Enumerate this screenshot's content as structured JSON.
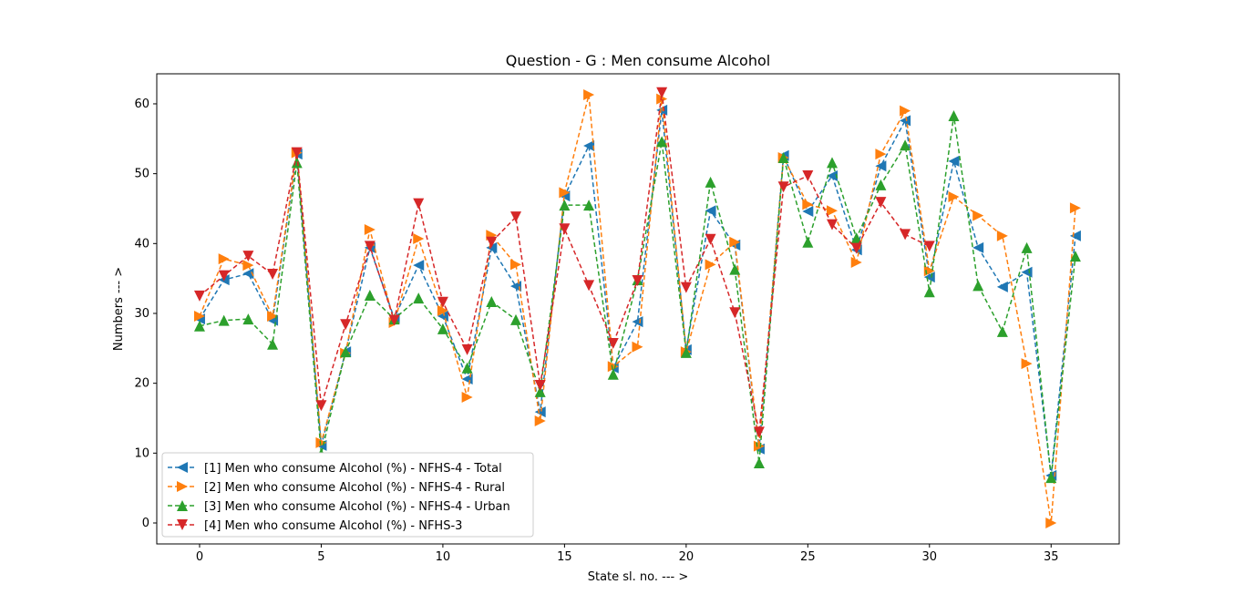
{
  "chart_data": {
    "type": "line",
    "title": "Question - G : Men consume Alcohol",
    "x_label": "State sl. no. --- >",
    "y_label": "Numbers --- >",
    "x": [
      0,
      1,
      2,
      3,
      4,
      5,
      6,
      7,
      8,
      9,
      10,
      11,
      12,
      13,
      14,
      15,
      16,
      17,
      18,
      19,
      20,
      21,
      22,
      23,
      24,
      25,
      26,
      27,
      28,
      29,
      30,
      31,
      32,
      33,
      34,
      35,
      36
    ],
    "xlim": [
      -1.76,
      37.8
    ],
    "xticks": [
      0,
      5,
      10,
      15,
      20,
      25,
      30,
      35
    ],
    "ylim": [
      -3.0,
      64.3
    ],
    "yticks": [
      0,
      10,
      20,
      30,
      40,
      50,
      60
    ],
    "legend": "lower left",
    "series": [
      {
        "name": "[1] Men who consume Alcohol (%) - NFHS-4 - Total",
        "color": "#1f77b4",
        "marker": "<",
        "values": [
          29.2,
          34.8,
          35.7,
          29.0,
          52.8,
          11.1,
          24.5,
          39.4,
          29.3,
          36.9,
          29.6,
          20.6,
          39.4,
          33.9,
          15.9,
          46.8,
          54.0,
          22.2,
          28.8,
          59.1,
          24.8,
          44.7,
          39.8,
          10.6,
          52.6,
          44.6,
          49.7,
          39.1,
          51.1,
          57.6,
          35.2,
          51.8,
          39.4,
          33.8,
          35.9,
          6.8,
          41.1
        ]
      },
      {
        "name": "[2] Men who consume Alcohol (%) - NFHS-4 - Rural",
        "color": "#ff7f0e",
        "marker": ">",
        "values": [
          29.6,
          37.8,
          36.9,
          29.6,
          53.0,
          11.5,
          24.3,
          42.0,
          28.7,
          40.7,
          30.4,
          18.0,
          41.2,
          37.0,
          14.6,
          47.3,
          61.3,
          22.4,
          25.2,
          60.7,
          24.5,
          37.0,
          40.2,
          11.0,
          52.3,
          45.6,
          44.7,
          37.3,
          52.8,
          59.0,
          36.1,
          46.7,
          44.0,
          41.1,
          22.8,
          0.0,
          45.1
        ]
      },
      {
        "name": "[3] Men who consume Alcohol (%) - NFHS-4 - Urban",
        "color": "#2ca02c",
        "marker": "^",
        "values": [
          28.2,
          29.0,
          29.2,
          25.6,
          51.6,
          9.9,
          24.5,
          32.6,
          29.2,
          32.2,
          27.8,
          22.2,
          31.7,
          29.1,
          18.8,
          45.5,
          45.5,
          21.3,
          34.8,
          54.6,
          24.4,
          48.8,
          36.3,
          8.6,
          52.3,
          40.2,
          51.6,
          40.8,
          48.4,
          54.1,
          33.1,
          58.3,
          34.0,
          27.4,
          39.4,
          6.5,
          38.2
        ]
      },
      {
        "name": "[4] Men who consume Alcohol (%) - NFHS-3",
        "color": "#d62728",
        "marker": "v",
        "values": [
          32.5,
          35.4,
          38.2,
          35.6,
          53.0,
          16.8,
          28.4,
          39.6,
          29.0,
          45.7,
          31.6,
          24.8,
          40.2,
          43.8,
          19.7,
          42.1,
          34.0,
          25.7,
          34.7,
          61.6,
          33.7,
          40.6,
          30.1,
          13.0,
          48.1,
          49.7,
          42.7,
          39.3,
          45.9,
          41.3,
          39.6,
          null,
          null,
          null,
          null,
          null,
          null
        ]
      }
    ]
  }
}
